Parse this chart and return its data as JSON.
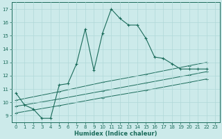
{
  "xlabel": "Humidex (Indice chaleur)",
  "bg_color": "#cceaea",
  "line_color": "#1a6b5a",
  "grid_color": "#b0d8d8",
  "xlim": [
    -0.5,
    23.5
  ],
  "ylim": [
    8.5,
    17.5
  ],
  "xticks": [
    0,
    1,
    2,
    3,
    4,
    5,
    6,
    7,
    8,
    9,
    10,
    11,
    12,
    13,
    14,
    15,
    16,
    17,
    18,
    19,
    20,
    21,
    22,
    23
  ],
  "yticks": [
    9,
    10,
    11,
    12,
    13,
    14,
    15,
    16,
    17
  ],
  "main_x": [
    0,
    1,
    2,
    3,
    4,
    5,
    6,
    7,
    8,
    9,
    10,
    11,
    12,
    13,
    14,
    15,
    16,
    17,
    18,
    19,
    20,
    21,
    22
  ],
  "main_y": [
    10.7,
    9.8,
    9.5,
    8.8,
    8.8,
    11.3,
    11.4,
    12.9,
    15.5,
    12.4,
    15.2,
    17.0,
    16.3,
    15.8,
    15.8,
    14.8,
    13.4,
    13.3,
    12.9,
    12.5,
    12.5,
    12.5,
    12.5
  ],
  "line2_x": [
    0,
    5,
    10,
    15,
    20,
    22
  ],
  "line2_y": [
    10.15,
    10.8,
    11.5,
    12.1,
    12.75,
    13.0
  ],
  "line3_x": [
    0,
    5,
    10,
    15,
    20,
    22
  ],
  "line3_y": [
    9.7,
    10.25,
    10.85,
    11.45,
    12.05,
    12.3
  ],
  "line4_x": [
    0,
    5,
    10,
    15,
    20,
    22
  ],
  "line4_y": [
    9.2,
    9.75,
    10.35,
    10.9,
    11.5,
    11.75
  ]
}
